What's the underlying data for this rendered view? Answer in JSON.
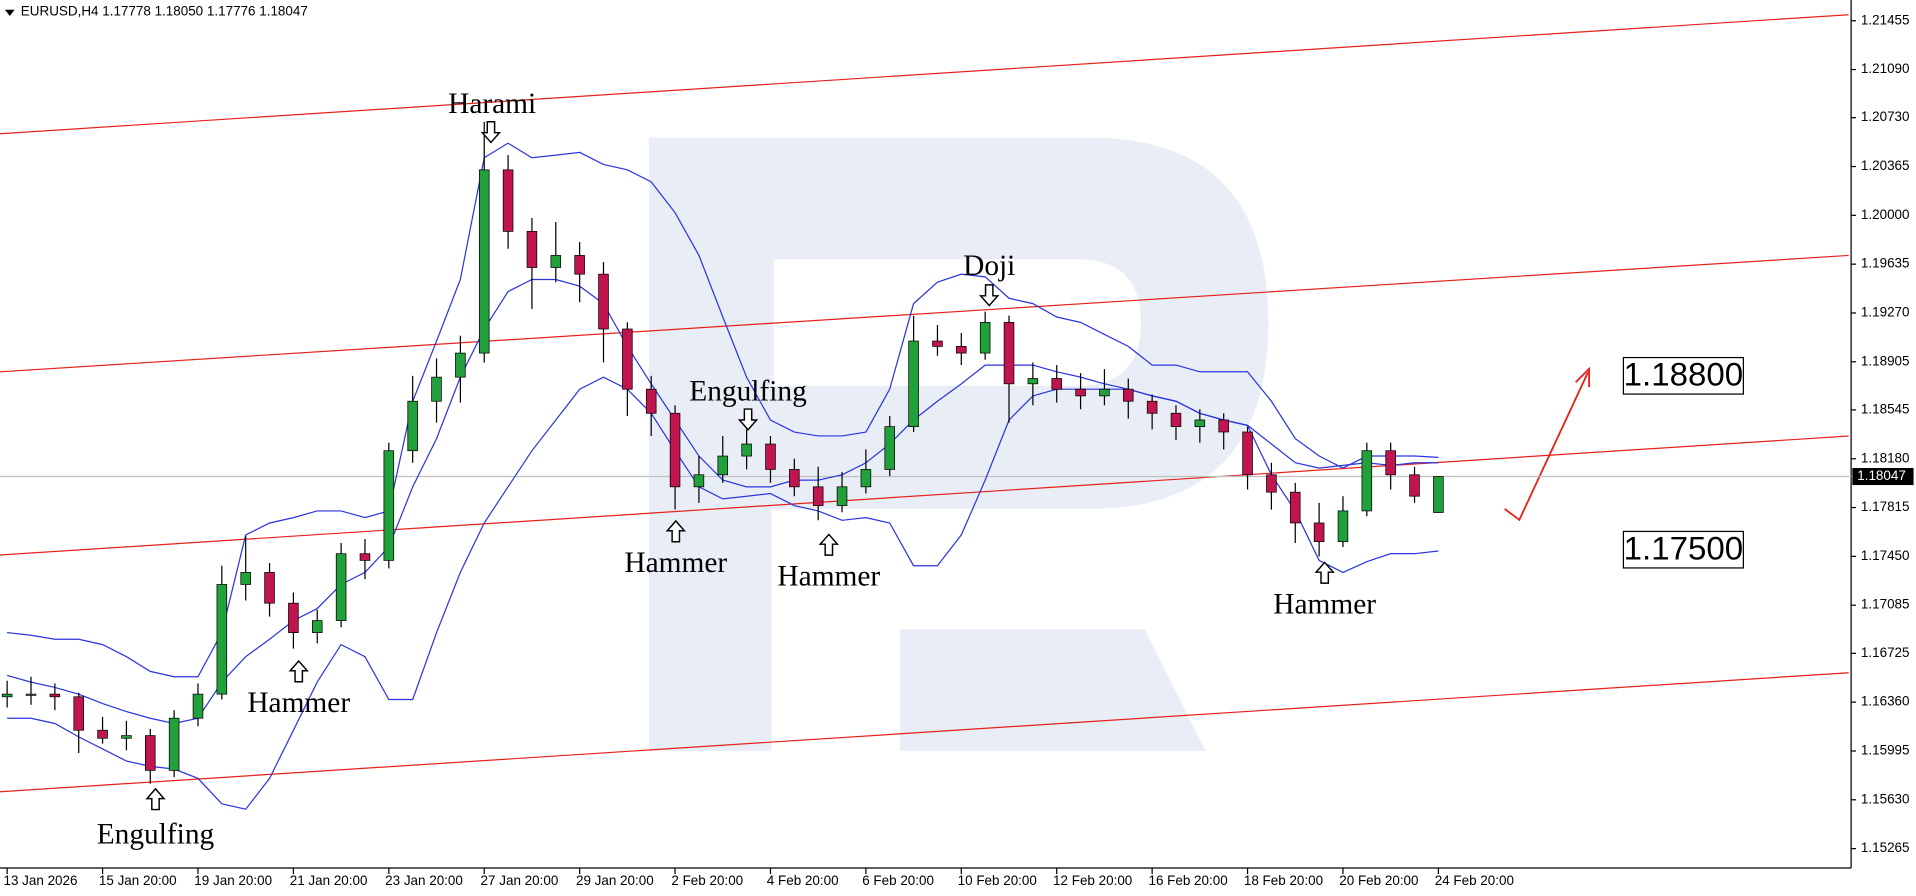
{
  "chart_data": {
    "type": "candlestick",
    "header": "EURUSD,H4  1.17778 1.18050 1.17776 1.18047",
    "up_color": "#22a03c",
    "down_color": "#c0154f",
    "ylim": [
      1.1512,
      1.2161
    ],
    "xlim": [
      -0.3,
      77.2
    ],
    "yticks": [
      1.15265,
      {
        "value": 1.1563,
        "label": "1.15630"
      },
      1.15995,
      {
        "value": 1.1636,
        "label": "1.16360"
      },
      1.16725,
      1.17085,
      {
        "value": 1.1745,
        "label": "1.17450"
      },
      1.17815,
      {
        "value": 1.1818,
        "label": "1.18180"
      },
      1.18545,
      1.18905,
      {
        "value": 1.1927,
        "label": "1.19270"
      },
      1.19635,
      {
        "value": 1.2,
        "label": "1.20000"
      },
      1.20365,
      {
        "value": 1.2073,
        "label": "1.20730"
      },
      {
        "value": 1.2109,
        "label": "1.21090"
      },
      1.21455
    ],
    "xticks": [
      {
        "value": 0,
        "label": "13 Jan 2026"
      },
      {
        "value": 4,
        "label": "15 Jan 20:00"
      },
      {
        "value": 8,
        "label": "19 Jan 20:00"
      },
      {
        "value": 12,
        "label": "21 Jan 20:00"
      },
      {
        "value": 16,
        "label": "23 Jan 20:00"
      },
      {
        "value": 20,
        "label": "27 Jan 20:00"
      },
      {
        "value": 24,
        "label": "29 Jan 20:00"
      },
      {
        "value": 28,
        "label": "2 Feb 20:00"
      },
      {
        "value": 32,
        "label": "4 Feb 20:00"
      },
      {
        "value": 36,
        "label": "6 Feb 20:00"
      },
      {
        "value": 40,
        "label": "10 Feb 20:00"
      },
      {
        "value": 44,
        "label": "12 Feb 20:00"
      },
      {
        "value": 48,
        "label": "16 Feb 20:00"
      },
      {
        "value": 52,
        "label": "18 Feb 20:00"
      },
      {
        "value": 56,
        "label": "20 Feb 20:00"
      },
      {
        "value": 60,
        "label": "24 Feb 20:00"
      }
    ],
    "ohlc": [
      [
        1.164,
        1.1652,
        1.1632,
        1.1642
      ],
      [
        1.1642,
        1.1655,
        1.1634,
        1.1642
      ],
      [
        1.1642,
        1.165,
        1.163,
        1.164
      ],
      [
        1.164,
        1.1643,
        1.1598,
        1.1615
      ],
      [
        1.1615,
        1.1625,
        1.1605,
        1.1609
      ],
      [
        1.1609,
        1.1622,
        1.16,
        1.1611
      ],
      [
        1.1611,
        1.1616,
        1.1575,
        1.1585
      ],
      [
        1.1585,
        1.163,
        1.158,
        1.1624
      ],
      [
        1.1624,
        1.165,
        1.1618,
        1.1642
      ],
      [
        1.1642,
        1.1738,
        1.1638,
        1.1724
      ],
      [
        1.1724,
        1.176,
        1.1712,
        1.1733
      ],
      [
        1.1733,
        1.174,
        1.17,
        1.171
      ],
      [
        1.171,
        1.1718,
        1.1676,
        1.1688
      ],
      [
        1.1688,
        1.1705,
        1.168,
        1.1697
      ],
      [
        1.1697,
        1.1755,
        1.1692,
        1.1747
      ],
      [
        1.1747,
        1.1758,
        1.1728,
        1.1742
      ],
      [
        1.1742,
        1.183,
        1.1736,
        1.1824
      ],
      [
        1.1824,
        1.188,
        1.1815,
        1.1861
      ],
      [
        1.1861,
        1.1893,
        1.1845,
        1.1879
      ],
      [
        1.1879,
        1.191,
        1.186,
        1.1897
      ],
      [
        1.1897,
        1.207,
        1.189,
        1.2034
      ],
      [
        1.2034,
        1.2045,
        1.1975,
        1.1988
      ],
      [
        1.1988,
        1.1998,
        1.193,
        1.1961
      ],
      [
        1.1961,
        1.1995,
        1.195,
        1.197
      ],
      [
        1.197,
        1.198,
        1.1935,
        1.1956
      ],
      [
        1.1956,
        1.1965,
        1.189,
        1.1915
      ],
      [
        1.1915,
        1.192,
        1.185,
        1.187
      ],
      [
        1.187,
        1.188,
        1.1835,
        1.1852
      ],
      [
        1.1852,
        1.1858,
        1.178,
        1.1797
      ],
      [
        1.1797,
        1.182,
        1.1785,
        1.1806
      ],
      [
        1.1806,
        1.1835,
        1.18,
        1.182
      ],
      [
        1.182,
        1.184,
        1.181,
        1.1829
      ],
      [
        1.1829,
        1.1835,
        1.18,
        1.181
      ],
      [
        1.181,
        1.1818,
        1.179,
        1.1797
      ],
      [
        1.1797,
        1.1812,
        1.1772,
        1.1783
      ],
      [
        1.1783,
        1.1808,
        1.1778,
        1.1797
      ],
      [
        1.1797,
        1.1825,
        1.1792,
        1.181
      ],
      [
        1.181,
        1.185,
        1.1805,
        1.1842
      ],
      [
        1.1842,
        1.1925,
        1.1838,
        1.1906
      ],
      [
        1.1906,
        1.1918,
        1.1895,
        1.1902
      ],
      [
        1.1902,
        1.1912,
        1.1888,
        1.1897
      ],
      [
        1.1897,
        1.1928,
        1.1892,
        1.192
      ],
      [
        1.192,
        1.1925,
        1.1845,
        1.1874
      ],
      [
        1.1874,
        1.189,
        1.1858,
        1.1878
      ],
      [
        1.1878,
        1.1888,
        1.186,
        1.187
      ],
      [
        1.187,
        1.1882,
        1.1855,
        1.1865
      ],
      [
        1.1865,
        1.1885,
        1.1858,
        1.187
      ],
      [
        1.187,
        1.1878,
        1.1848,
        1.1861
      ],
      [
        1.1861,
        1.1866,
        1.184,
        1.1852
      ],
      [
        1.1852,
        1.1858,
        1.1832,
        1.1842
      ],
      [
        1.1842,
        1.1855,
        1.183,
        1.1847
      ],
      [
        1.1847,
        1.1852,
        1.1825,
        1.1838
      ],
      [
        1.1838,
        1.1842,
        1.1795,
        1.1806
      ],
      [
        1.1806,
        1.1815,
        1.178,
        1.1793
      ],
      [
        1.1793,
        1.18,
        1.1755,
        1.177
      ],
      [
        1.177,
        1.1785,
        1.1745,
        1.1756
      ],
      [
        1.1756,
        1.179,
        1.1752,
        1.1779
      ],
      [
        1.1779,
        1.183,
        1.1775,
        1.1824
      ],
      [
        1.1824,
        1.183,
        1.1795,
        1.1806
      ],
      [
        1.1806,
        1.1812,
        1.1785,
        1.179
      ],
      [
        1.17778,
        1.1805,
        1.17776,
        1.18047
      ]
    ],
    "bands": {
      "color": "#2a35e0",
      "upper": [
        1.1688,
        1.1686,
        1.1683,
        1.1683,
        1.1679,
        1.167,
        1.1659,
        1.1655,
        1.1655,
        1.1688,
        1.1761,
        1.177,
        1.1774,
        1.1779,
        1.1779,
        1.1774,
        1.1779,
        1.1861,
        1.1906,
        1.1952,
        1.2043,
        1.2054,
        1.2043,
        1.2045,
        1.2047,
        1.2038,
        1.2034,
        1.2025,
        1.2002,
        1.197,
        1.1924,
        1.1879,
        1.1847,
        1.1838,
        1.1835,
        1.1835,
        1.1838,
        1.187,
        1.1934,
        1.195,
        1.1956,
        1.1954,
        1.1938,
        1.1934,
        1.1924,
        1.192,
        1.1911,
        1.1902,
        1.1888,
        1.1888,
        1.1883,
        1.1883,
        1.1883,
        1.1861,
        1.1833,
        1.182,
        1.1811,
        1.182,
        1.182,
        1.182,
        1.1819
      ],
      "middle": [
        1.1656,
        1.1651,
        1.1647,
        1.1642,
        1.1635,
        1.1629,
        1.1624,
        1.162,
        1.1624,
        1.1651,
        1.167,
        1.1683,
        1.1697,
        1.1706,
        1.1724,
        1.1733,
        1.1752,
        1.1797,
        1.1833,
        1.1879,
        1.1915,
        1.1943,
        1.1952,
        1.1952,
        1.1947,
        1.1934,
        1.1902,
        1.1874,
        1.1847,
        1.182,
        1.1802,
        1.1797,
        1.1797,
        1.1802,
        1.1802,
        1.1806,
        1.1815,
        1.1829,
        1.1847,
        1.1861,
        1.1874,
        1.1888,
        1.1888,
        1.1888,
        1.1883,
        1.1879,
        1.1874,
        1.187,
        1.1865,
        1.1861,
        1.1852,
        1.1847,
        1.1843,
        1.1829,
        1.1815,
        1.1811,
        1.1813,
        1.1815,
        1.1813,
        1.1815,
        1.1815
      ],
      "lower": [
        1.1624,
        1.1624,
        1.162,
        1.161,
        1.1601,
        1.1592,
        1.1588,
        1.1586,
        1.1579,
        1.156,
        1.1556,
        1.1579,
        1.1615,
        1.1651,
        1.1679,
        1.167,
        1.1638,
        1.1638,
        1.1688,
        1.1733,
        1.177,
        1.1797,
        1.1824,
        1.1847,
        1.187,
        1.1879,
        1.187,
        1.1852,
        1.1824,
        1.1797,
        1.1788,
        1.179,
        1.1792,
        1.1783,
        1.1779,
        1.1772,
        1.1774,
        1.177,
        1.1738,
        1.1738,
        1.1761,
        1.1802,
        1.1847,
        1.1865,
        1.187,
        1.187,
        1.187,
        1.187,
        1.1865,
        1.1861,
        1.1852,
        1.1847,
        1.1843,
        1.1806,
        1.1779,
        1.1742,
        1.1733,
        1.1741,
        1.1747,
        1.1747,
        1.1749
      ]
    },
    "channels": {
      "color": "#e8211b",
      "lines": [
        {
          "x": [
            -0.3,
            77.2
          ],
          "values": [
            1.2061,
            1.215
          ]
        },
        {
          "x": [
            -0.3,
            77.2
          ],
          "values": [
            1.1883,
            1.197
          ]
        },
        {
          "x": [
            -0.3,
            77.2
          ],
          "values": [
            1.1746,
            1.1835
          ]
        },
        {
          "x": [
            -0.3,
            77.2
          ],
          "values": [
            1.1569,
            1.1658
          ]
        }
      ]
    },
    "current_price": {
      "value": 1.18047,
      "label": "1.18047"
    },
    "levels": [
      {
        "value": 1.188,
        "label": "1.18800"
      },
      {
        "value": 1.175,
        "label": "1.17500"
      }
    ],
    "annotations": [
      "Engulfing",
      "Hammer",
      "Harami",
      "Hammer",
      "Engulfing",
      "Hammer",
      "Doji",
      "Hammer"
    ]
  }
}
